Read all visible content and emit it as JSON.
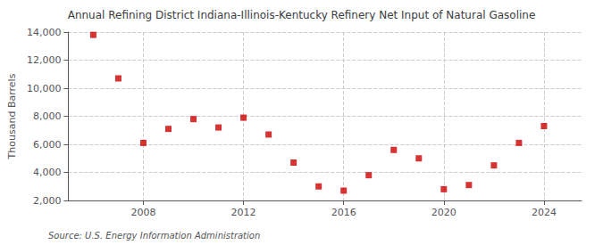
{
  "chart_data": {
    "type": "scatter",
    "title": "Annual Refining District Indiana-Illinois-Kentucky Refinery Net Input of Natural Gasoline",
    "ylabel": "Thousand Barrels",
    "annotation": "Source: U.S. Energy Information Administration",
    "x": [
      2006,
      2007,
      2008,
      2009,
      2010,
      2011,
      2012,
      2013,
      2014,
      2015,
      2016,
      2017,
      2018,
      2019,
      2020,
      2021,
      2022,
      2023,
      2024
    ],
    "values": [
      13800,
      10700,
      6100,
      7100,
      7800,
      7200,
      7900,
      6700,
      4700,
      3000,
      2700,
      3800,
      5600,
      5000,
      2800,
      3100,
      4500,
      6100,
      7300
    ],
    "color": "#cc0000",
    "marker": "square",
    "xlim": [
      2005.0,
      2025.5
    ],
    "xticks": [
      2008,
      2012,
      2016,
      2020,
      2024
    ],
    "ylim": [
      2000,
      14000
    ],
    "yticks": [
      {
        "value": 2000,
        "label": "2,000"
      },
      {
        "value": 4000,
        "label": "4,000"
      },
      {
        "value": 6000,
        "label": "6,000"
      },
      {
        "value": 8000,
        "label": "8,000"
      },
      {
        "value": 10000,
        "label": "10,000"
      },
      {
        "value": 12000,
        "label": "12,000"
      },
      {
        "value": 14000,
        "label": "14,000"
      }
    ],
    "grid": true
  }
}
